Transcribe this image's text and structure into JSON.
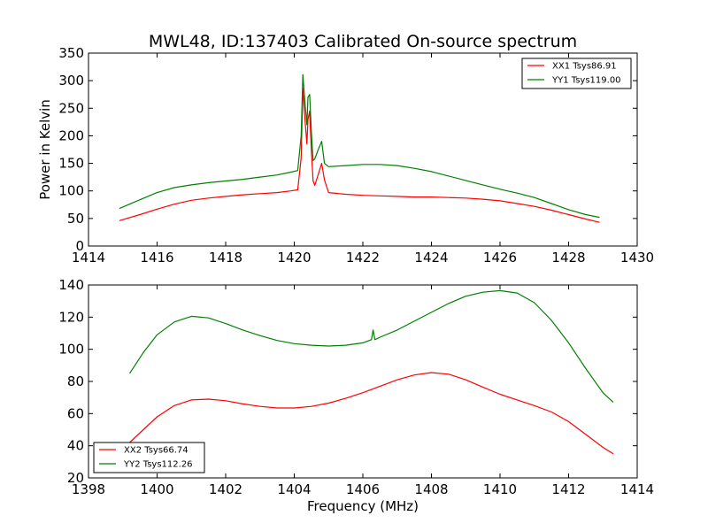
{
  "title": "MWL48, ID:137403 Calibrated On-source spectrum",
  "chart_data": [
    {
      "type": "line",
      "title": "MWL48, ID:137403 Calibrated On-source spectrum",
      "xlabel": "",
      "ylabel": "Power in Kelvin",
      "xlim": [
        1414,
        1430
      ],
      "ylim": [
        0,
        350
      ],
      "xticks": [
        "1414",
        "1416",
        "1418",
        "1420",
        "1422",
        "1424",
        "1426",
        "1428",
        "1430"
      ],
      "yticks": [
        "0",
        "50",
        "100",
        "150",
        "200",
        "250",
        "300",
        "350"
      ],
      "grid": false,
      "legend_position": "top-right",
      "series": [
        {
          "name": "XX1 Tsys86.91",
          "color": "#ff0000",
          "x": [
            1414.9,
            1415.5,
            1416.0,
            1416.5,
            1417.0,
            1417.5,
            1418.0,
            1418.5,
            1419.0,
            1419.5,
            1419.9,
            1420.1,
            1420.2,
            1420.25,
            1420.3,
            1420.37,
            1420.4,
            1420.45,
            1420.5,
            1420.55,
            1420.6,
            1420.7,
            1420.8,
            1420.88,
            1421.0,
            1421.5,
            1422.0,
            1422.5,
            1423.0,
            1423.5,
            1424.0,
            1424.5,
            1425.0,
            1425.5,
            1426.0,
            1426.5,
            1427.0,
            1427.5,
            1428.0,
            1428.5,
            1428.9
          ],
          "y": [
            46,
            57,
            67,
            76,
            83,
            87,
            90,
            93,
            95,
            97,
            100,
            102,
            160,
            287,
            240,
            185,
            230,
            245,
            170,
            118,
            110,
            130,
            150,
            120,
            97,
            94,
            92,
            91,
            90,
            89,
            89,
            88,
            87,
            85,
            82,
            77,
            72,
            65,
            57,
            49,
            43
          ]
        },
        {
          "name": "YY1 Tsys119.00",
          "color": "#008000",
          "x": [
            1414.9,
            1415.5,
            1416.0,
            1416.5,
            1417.0,
            1417.5,
            1418.0,
            1418.5,
            1419.0,
            1419.5,
            1419.9,
            1420.1,
            1420.2,
            1420.25,
            1420.3,
            1420.37,
            1420.4,
            1420.45,
            1420.5,
            1420.55,
            1420.6,
            1420.7,
            1420.8,
            1420.88,
            1421.0,
            1421.5,
            1422.0,
            1422.5,
            1423.0,
            1423.5,
            1424.0,
            1424.5,
            1425.0,
            1425.5,
            1426.0,
            1426.5,
            1427.0,
            1427.5,
            1428.0,
            1428.5,
            1428.9
          ],
          "y": [
            68,
            84,
            97,
            106,
            111,
            115,
            118,
            121,
            125,
            129,
            134,
            137,
            200,
            311,
            270,
            220,
            270,
            275,
            205,
            155,
            158,
            175,
            190,
            150,
            144,
            146,
            148,
            148,
            146,
            141,
            135,
            127,
            119,
            111,
            103,
            96,
            88,
            77,
            66,
            57,
            52
          ]
        }
      ]
    },
    {
      "type": "line",
      "title": "",
      "xlabel": "Frequency (MHz)",
      "ylabel": "",
      "xlim": [
        1398,
        1414
      ],
      "ylim": [
        20,
        140
      ],
      "xticks": [
        "1398",
        "1400",
        "1402",
        "1404",
        "1406",
        "1408",
        "1410",
        "1412",
        "1414"
      ],
      "yticks": [
        "20",
        "40",
        "60",
        "80",
        "100",
        "120",
        "140"
      ],
      "grid": false,
      "legend_position": "bottom-left",
      "series": [
        {
          "name": "XX2 Tsys66.74",
          "color": "#ff0000",
          "x": [
            1399.2,
            1399.6,
            1400.0,
            1400.5,
            1401.0,
            1401.5,
            1402.0,
            1402.5,
            1403.0,
            1403.5,
            1404.0,
            1404.5,
            1405.0,
            1405.5,
            1406.0,
            1406.5,
            1407.0,
            1407.5,
            1408.0,
            1408.5,
            1409.0,
            1409.5,
            1410.0,
            1410.5,
            1411.0,
            1411.5,
            1412.0,
            1412.5,
            1413.0,
            1413.3
          ],
          "y": [
            42,
            50,
            58,
            65,
            68.5,
            69,
            68,
            66,
            64.5,
            63.5,
            63.5,
            64.5,
            66.5,
            69.5,
            73,
            77,
            81,
            84,
            85.5,
            84.5,
            81,
            76.5,
            72,
            68.5,
            65,
            61,
            55,
            47,
            39,
            35
          ]
        },
        {
          "name": "YY2 Tsys112.26",
          "color": "#008000",
          "x": [
            1399.2,
            1399.6,
            1400.0,
            1400.5,
            1401.0,
            1401.5,
            1402.0,
            1402.5,
            1403.0,
            1403.5,
            1404.0,
            1404.5,
            1405.0,
            1405.5,
            1406.0,
            1406.25,
            1406.3,
            1406.35,
            1406.5,
            1407.0,
            1407.5,
            1408.0,
            1408.5,
            1409.0,
            1409.5,
            1410.0,
            1410.5,
            1411.0,
            1411.5,
            1412.0,
            1412.5,
            1413.0,
            1413.3
          ],
          "y": [
            85,
            98,
            109,
            117,
            120.5,
            119.5,
            116,
            112,
            108.5,
            105.5,
            103.5,
            102.5,
            102,
            102.5,
            104,
            106,
            112,
            106,
            107.5,
            112,
            117.5,
            123,
            128.5,
            133,
            135.5,
            136.5,
            135,
            129,
            118,
            104,
            88,
            73,
            67
          ]
        }
      ]
    }
  ]
}
